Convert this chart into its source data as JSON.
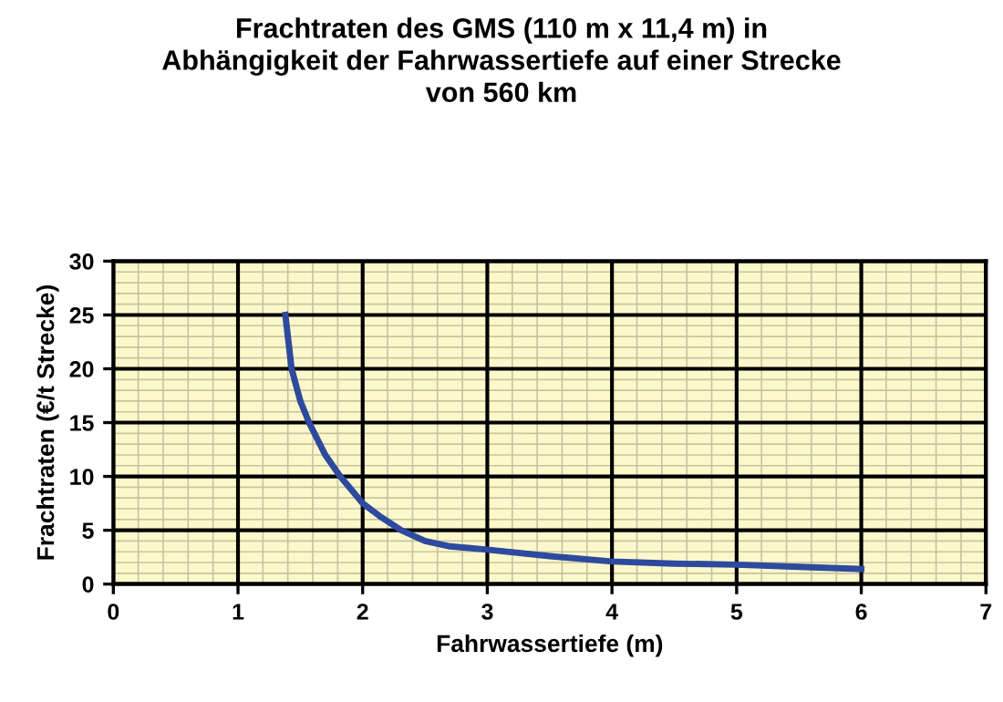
{
  "chart_data": {
    "type": "line",
    "title": "Frachtraten des GMS (110 m x 11,4 m) in\nAbhängigkeit der Fahrwassertiefe auf einer Strecke\nvon 560 km",
    "xlabel": "Fahrwassertiefe (m)",
    "ylabel": "Frachtraten (€/t Strecke)",
    "series": [
      {
        "color": "#2e4a9e",
        "x": [
          1.38,
          1.43,
          1.5,
          1.57,
          1.7,
          1.82,
          2.0,
          2.15,
          2.31,
          2.5,
          2.7,
          3.0,
          3.5,
          4.0,
          4.5,
          5.0,
          5.5,
          6.0
        ],
        "values": [
          25,
          20,
          17,
          15,
          12,
          10,
          7.5,
          6.2,
          5,
          4.0,
          3.5,
          3.2,
          2.6,
          2.1,
          1.9,
          1.8,
          1.6,
          1.4
        ]
      }
    ],
    "xlim": [
      0,
      7
    ],
    "xticks": [
      0,
      1,
      2,
      3,
      4,
      5,
      6,
      7
    ],
    "ylim": [
      0,
      30
    ],
    "yticks": [
      0,
      5,
      10,
      15,
      20,
      25,
      30
    ],
    "grid": true,
    "marker": "none",
    "line_style": "solid"
  }
}
